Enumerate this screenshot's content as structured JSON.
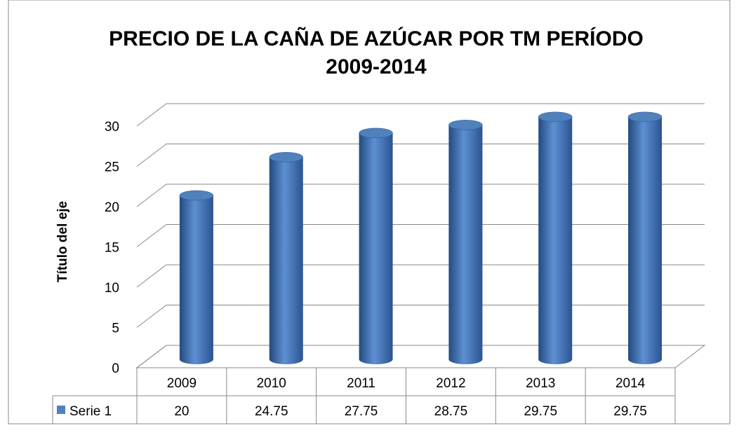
{
  "chart_data": {
    "type": "bar3d",
    "title": "PRECIO DE LA CAÑA DE AZÚCAR POR TM PERÍODO 2009-2014",
    "y_label": "Título del eje",
    "categories": [
      "2009",
      "2010",
      "2011",
      "2012",
      "2013",
      "2014"
    ],
    "series": [
      {
        "name": "Serie 1",
        "color": "#4f81bd",
        "values": [
          20,
          24.75,
          27.75,
          28.75,
          29.75,
          29.75
        ]
      }
    ],
    "ylim": [
      0,
      30
    ],
    "yticks": [
      0,
      5,
      10,
      15,
      20,
      25,
      30
    ],
    "grid": true,
    "data_table": true
  }
}
